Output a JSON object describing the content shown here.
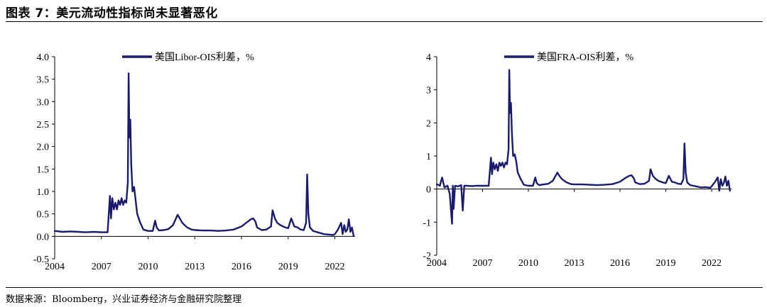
{
  "title": "图表 7：美元流动性指标尚未显著恶化",
  "source": "数据来源：Bloomberg，兴业证券经济与金融研究院整理",
  "line_color": "#1a1a6e",
  "chart_data": [
    {
      "type": "line",
      "title": "",
      "xlabel": "",
      "ylabel": "",
      "legend": "top-center",
      "xlim": [
        2004,
        2023.3
      ],
      "ylim": [
        -0.5,
        4.0
      ],
      "x_ticks": [
        "2004",
        "2007",
        "2010",
        "2013",
        "2016",
        "2019",
        "2022"
      ],
      "y_ticks": [
        "-0.5",
        "0.0",
        "0.5",
        "1.0",
        "1.5",
        "2.0",
        "2.5",
        "3.0",
        "3.5",
        "4.0"
      ],
      "series": [
        {
          "name": "美国Libor-OIS利差，%",
          "x": [
            2004.0,
            2004.5,
            2005.0,
            2005.5,
            2006.0,
            2006.5,
            2007.0,
            2007.4,
            2007.55,
            2007.62,
            2007.7,
            2007.8,
            2007.9,
            2008.0,
            2008.1,
            2008.2,
            2008.3,
            2008.4,
            2008.5,
            2008.6,
            2008.7,
            2008.75,
            2008.8,
            2008.86,
            2008.92,
            2009.0,
            2009.1,
            2009.2,
            2009.3,
            2009.5,
            2009.7,
            2010.0,
            2010.3,
            2010.45,
            2010.55,
            2010.7,
            2011.0,
            2011.3,
            2011.6,
            2011.9,
            2012.0,
            2012.2,
            2012.5,
            2012.8,
            2013.0,
            2013.5,
            2014.0,
            2014.5,
            2015.0,
            2015.5,
            2016.0,
            2016.3,
            2016.6,
            2016.75,
            2016.9,
            2017.0,
            2017.3,
            2017.6,
            2017.9,
            2018.0,
            2018.15,
            2018.3,
            2018.5,
            2018.8,
            2019.0,
            2019.2,
            2019.4,
            2019.6,
            2019.8,
            2020.0,
            2020.15,
            2020.22,
            2020.3,
            2020.4,
            2020.6,
            2020.8,
            2021.0,
            2021.3,
            2021.6,
            2021.9,
            2022.0,
            2022.2,
            2022.4,
            2022.5,
            2022.6,
            2022.7,
            2022.8,
            2022.9,
            2023.0,
            2023.1,
            2023.2
          ],
          "y": [
            0.12,
            0.1,
            0.11,
            0.1,
            0.09,
            0.1,
            0.09,
            0.09,
            0.9,
            0.4,
            0.85,
            0.6,
            0.75,
            0.6,
            0.8,
            0.7,
            0.85,
            0.7,
            0.8,
            0.75,
            1.2,
            3.63,
            2.2,
            2.6,
            1.6,
            1.0,
            1.1,
            0.8,
            0.5,
            0.3,
            0.15,
            0.12,
            0.12,
            0.35,
            0.2,
            0.13,
            0.14,
            0.16,
            0.25,
            0.48,
            0.42,
            0.3,
            0.2,
            0.15,
            0.14,
            0.13,
            0.13,
            0.12,
            0.13,
            0.15,
            0.22,
            0.3,
            0.38,
            0.4,
            0.33,
            0.2,
            0.14,
            0.15,
            0.22,
            0.58,
            0.4,
            0.3,
            0.25,
            0.2,
            0.18,
            0.4,
            0.22,
            0.2,
            0.15,
            0.14,
            0.3,
            1.38,
            0.5,
            0.2,
            0.12,
            0.1,
            0.08,
            0.05,
            0.04,
            0.03,
            0.05,
            0.15,
            0.3,
            0.05,
            0.25,
            0.1,
            0.15,
            0.38,
            0.1,
            0.2,
            0.02
          ]
        }
      ]
    },
    {
      "type": "line",
      "title": "",
      "xlabel": "",
      "ylabel": "",
      "legend": "top-center",
      "xlim": [
        2004,
        2023.3
      ],
      "ylim": [
        -2,
        4
      ],
      "x_ticks": [
        "2004",
        "2007",
        "2010",
        "2013",
        "2016",
        "2019",
        "2022"
      ],
      "y_ticks": [
        "-2",
        "-1",
        "0",
        "1",
        "2",
        "3",
        "4"
      ],
      "series": [
        {
          "name": "美国FRA-OIS利差，%",
          "x": [
            2004.0,
            2004.2,
            2004.35,
            2004.5,
            2004.7,
            2004.85,
            2005.0,
            2005.05,
            2005.1,
            2005.2,
            2005.4,
            2005.6,
            2005.7,
            2005.8,
            2006.0,
            2006.3,
            2006.6,
            2007.0,
            2007.4,
            2007.55,
            2007.62,
            2007.7,
            2007.8,
            2007.9,
            2008.0,
            2008.1,
            2008.2,
            2008.3,
            2008.4,
            2008.5,
            2008.6,
            2008.7,
            2008.75,
            2008.8,
            2008.86,
            2008.92,
            2009.0,
            2009.1,
            2009.2,
            2009.3,
            2009.5,
            2009.7,
            2010.0,
            2010.3,
            2010.45,
            2010.55,
            2010.7,
            2011.0,
            2011.3,
            2011.6,
            2011.9,
            2012.0,
            2012.2,
            2012.5,
            2012.8,
            2013.0,
            2013.5,
            2014.0,
            2014.5,
            2015.0,
            2015.5,
            2016.0,
            2016.3,
            2016.6,
            2016.75,
            2016.9,
            2017.0,
            2017.3,
            2017.6,
            2017.9,
            2018.0,
            2018.15,
            2018.3,
            2018.5,
            2018.8,
            2019.0,
            2019.2,
            2019.4,
            2019.6,
            2019.8,
            2020.0,
            2020.15,
            2020.22,
            2020.3,
            2020.4,
            2020.6,
            2020.8,
            2021.0,
            2021.3,
            2021.6,
            2021.9,
            2022.0,
            2022.2,
            2022.4,
            2022.5,
            2022.6,
            2022.7,
            2022.8,
            2022.9,
            2023.0,
            2023.1,
            2023.2
          ],
          "y": [
            0.15,
            0.1,
            0.35,
            0.05,
            0.1,
            -0.15,
            -1.05,
            0.1,
            -0.6,
            0.1,
            0.08,
            0.12,
            -0.65,
            0.1,
            0.1,
            0.09,
            0.1,
            0.1,
            0.1,
            0.95,
            0.45,
            0.8,
            0.6,
            0.75,
            0.55,
            0.8,
            0.7,
            0.8,
            0.65,
            0.8,
            0.75,
            1.2,
            3.6,
            2.3,
            2.6,
            1.7,
            1.0,
            1.05,
            0.85,
            0.5,
            0.3,
            0.13,
            0.1,
            0.1,
            0.35,
            0.18,
            0.12,
            0.14,
            0.16,
            0.25,
            0.5,
            0.42,
            0.3,
            0.2,
            0.15,
            0.14,
            0.14,
            0.13,
            0.12,
            0.13,
            0.15,
            0.22,
            0.32,
            0.4,
            0.42,
            0.33,
            0.2,
            0.15,
            0.16,
            0.25,
            0.6,
            0.4,
            0.32,
            0.25,
            0.2,
            0.18,
            0.4,
            0.22,
            0.2,
            0.16,
            0.15,
            0.3,
            1.38,
            0.5,
            0.2,
            0.12,
            0.1,
            0.08,
            0.05,
            0.06,
            0.04,
            0.08,
            0.2,
            0.35,
            -0.05,
            0.3,
            0.1,
            0.18,
            0.38,
            0.1,
            0.25,
            -0.05
          ]
        }
      ]
    }
  ]
}
